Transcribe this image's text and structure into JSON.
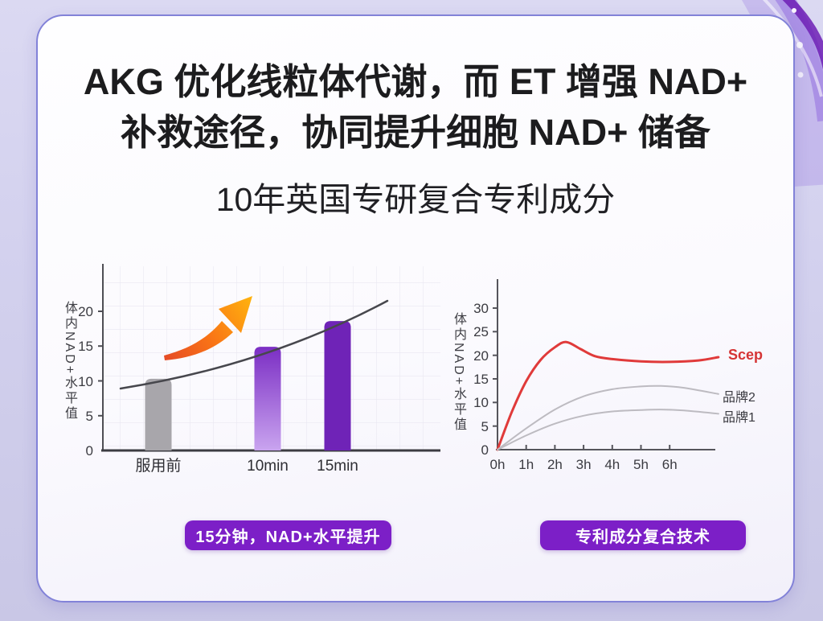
{
  "header": {
    "title_line1": "AKG 优化线粒体代谢，而 ET 增强 NAD+",
    "title_line2": "补救途径，协同提升细胞 NAD+ 储备",
    "subtitle": "10年英国专研复合专利成分"
  },
  "colors": {
    "accent_purple": "#7C1FC7",
    "card_border": "#8282D8",
    "bar_gray": "#A8A6AB",
    "bar_purple_solid": "#6F23B7",
    "bar_gradient_bottom": "#C9A4EF",
    "bar_gradient_top": "#7B2EC4",
    "trend_line": "#47474D",
    "arrow_orange_tail": "#E54B26",
    "arrow_orange_head": "#FFB40E",
    "line_red": "#E03A3A",
    "line_gray": "#BDBBC1"
  },
  "chart_data": [
    {
      "type": "bar",
      "title": "",
      "ylabel": "体内NAD+水平值",
      "xlabel": "",
      "categories": [
        "服用前",
        "10min",
        "15min"
      ],
      "values": [
        10.3,
        14.9,
        18.6
      ],
      "yticks": [
        0,
        5,
        10,
        15,
        20
      ],
      "ylim": [
        0,
        24
      ],
      "grid": true,
      "bar_colors": [
        {
          "solid": "#A8A6AB"
        },
        {
          "gradient": [
            "#C9A4EF",
            "#7B2EC4"
          ]
        },
        {
          "solid": "#6F23B7"
        }
      ],
      "annotations": [
        "upward trend curve",
        "orange rising arrow"
      ],
      "caption": "15分钟，NAD+水平提升"
    },
    {
      "type": "line",
      "title": "",
      "ylabel": "体内NAD+水平值",
      "xlabel": "",
      "xticks": [
        "0h",
        "1h",
        "2h",
        "3h",
        "4h",
        "5h",
        "6h"
      ],
      "yticks": [
        0,
        5,
        10,
        15,
        20,
        25,
        30
      ],
      "ylim": [
        0,
        33
      ],
      "xlim_hours": [
        0,
        7.7
      ],
      "grid": false,
      "legend_position": "right",
      "series": [
        {
          "name": "Scep",
          "color": "#E03A3A",
          "label_color": "#D53434",
          "width": 3,
          "points": [
            [
              0,
              0
            ],
            [
              0.5,
              8
            ],
            [
              1,
              14.5
            ],
            [
              1.5,
              19
            ],
            [
              2,
              21.7
            ],
            [
              2.4,
              22.8
            ],
            [
              2.9,
              21.3
            ],
            [
              3.4,
              19.8
            ],
            [
              4,
              19.2
            ],
            [
              5,
              18.7
            ],
            [
              6,
              18.6
            ],
            [
              7,
              18.9
            ],
            [
              7.7,
              19.6
            ]
          ]
        },
        {
          "name": "品牌2",
          "color": "#BDBBC1",
          "label_color": "#3A3A40",
          "width": 2,
          "points": [
            [
              0,
              0
            ],
            [
              1,
              4.5
            ],
            [
              2,
              8.5
            ],
            [
              3,
              11.3
            ],
            [
              4,
              12.8
            ],
            [
              5,
              13.4
            ],
            [
              5.7,
              13.5
            ],
            [
              6.5,
              13.1
            ],
            [
              7.7,
              11.8
            ]
          ]
        },
        {
          "name": "品牌1",
          "color": "#BDBBC1",
          "label_color": "#3A3A40",
          "width": 2,
          "points": [
            [
              0,
              0
            ],
            [
              1,
              3.0
            ],
            [
              2,
              5.5
            ],
            [
              3,
              7.2
            ],
            [
              4,
              8.1
            ],
            [
              5,
              8.4
            ],
            [
              5.7,
              8.5
            ],
            [
              6.5,
              8.3
            ],
            [
              7.7,
              7.6
            ]
          ]
        }
      ],
      "caption": "专利成分复合技术"
    }
  ]
}
